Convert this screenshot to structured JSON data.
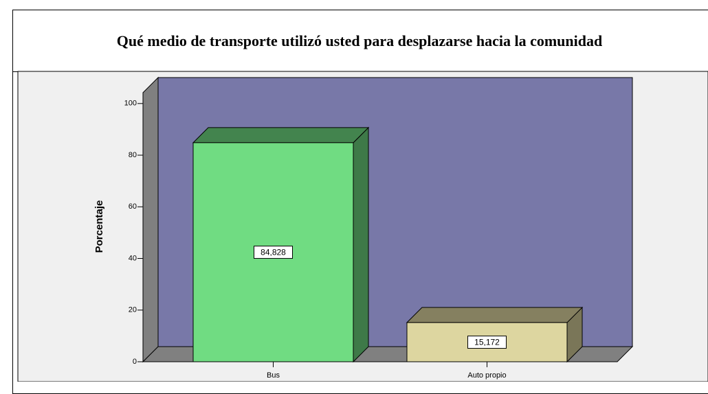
{
  "chart_data": {
    "type": "bar3d",
    "title": "Qué medio de transporte utilizó usted para desplazarse hacia la comunidad",
    "y_label": "Porcentaje",
    "categories": [
      "Bus",
      "Auto propio"
    ],
    "values": [
      84.828,
      15.172
    ],
    "value_labels": [
      "84,828",
      "15,172"
    ],
    "colors": [
      "#70dc82",
      "#ddd6a0"
    ],
    "ylim": [
      0,
      105
    ],
    "yticks": [
      0,
      20,
      40,
      60,
      80,
      100
    ]
  }
}
